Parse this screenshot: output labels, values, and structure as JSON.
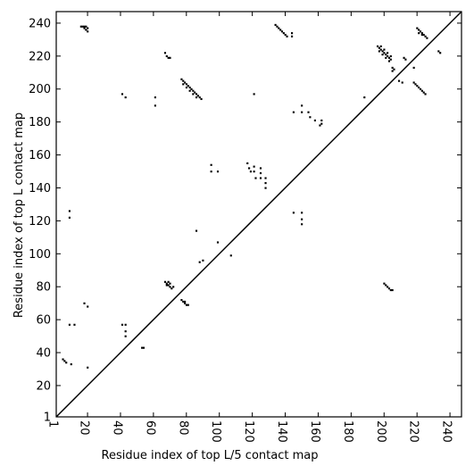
{
  "chart_data": {
    "type": "scatter",
    "title": "",
    "xlabel": "Residue index of top L/5 contact map",
    "ylabel": "Residue index of top L contact map",
    "xlim": [
      1,
      247
    ],
    "ylim": [
      1,
      247
    ],
    "xticks": [
      1,
      20,
      40,
      60,
      80,
      100,
      120,
      140,
      160,
      180,
      200,
      220,
      240
    ],
    "yticks": [
      1,
      20,
      40,
      60,
      80,
      100,
      120,
      140,
      160,
      180,
      200,
      220,
      240
    ],
    "xtick_labels": [
      "1",
      "20",
      "40",
      "60",
      "80",
      "100",
      "120",
      "140",
      "160",
      "180",
      "200",
      "220",
      "240"
    ],
    "ytick_labels": [
      "1",
      "20",
      "40",
      "60",
      "80",
      "100",
      "120",
      "140",
      "160",
      "180",
      "200",
      "220",
      "240"
    ],
    "grid": false,
    "diagonal_line": true,
    "marker_color": "#000000",
    "series": [
      {
        "points": [
          [
            16,
            238
          ],
          [
            17,
            238
          ],
          [
            18,
            237
          ],
          [
            19,
            236
          ],
          [
            20,
            235
          ],
          [
            19,
            238
          ],
          [
            20,
            237
          ],
          [
            18,
            238
          ],
          [
            5,
            36
          ],
          [
            6,
            35
          ],
          [
            7,
            34
          ],
          [
            10,
            33
          ],
          [
            9,
            126
          ],
          [
            9,
            122
          ],
          [
            9,
            57
          ],
          [
            12,
            57
          ],
          [
            18,
            70
          ],
          [
            20,
            68
          ],
          [
            20,
            31
          ],
          [
            41,
            57
          ],
          [
            43,
            57
          ],
          [
            43,
            53
          ],
          [
            43,
            50
          ],
          [
            53,
            43
          ],
          [
            54,
            43
          ],
          [
            41,
            197
          ],
          [
            43,
            195
          ],
          [
            61,
            195
          ],
          [
            61,
            190
          ],
          [
            67,
            222
          ],
          [
            68,
            220
          ],
          [
            69,
            219
          ],
          [
            70,
            219
          ],
          [
            67,
            83
          ],
          [
            68,
            82
          ],
          [
            69,
            81
          ],
          [
            70,
            80
          ],
          [
            71,
            79
          ],
          [
            68,
            81
          ],
          [
            70,
            82
          ],
          [
            72,
            80
          ],
          [
            69,
            83
          ],
          [
            77,
            72
          ],
          [
            78,
            71
          ],
          [
            79,
            70
          ],
          [
            80,
            69
          ],
          [
            81,
            69
          ],
          [
            79,
            71
          ],
          [
            77,
            206
          ],
          [
            78,
            205
          ],
          [
            79,
            204
          ],
          [
            80,
            203
          ],
          [
            81,
            202
          ],
          [
            82,
            201
          ],
          [
            83,
            200
          ],
          [
            84,
            199
          ],
          [
            85,
            198
          ],
          [
            86,
            197
          ],
          [
            87,
            196
          ],
          [
            88,
            195
          ],
          [
            89,
            194
          ],
          [
            78,
            203
          ],
          [
            80,
            201
          ],
          [
            82,
            199
          ],
          [
            84,
            197
          ],
          [
            86,
            195
          ],
          [
            86,
            114
          ],
          [
            88,
            95
          ],
          [
            90,
            96
          ],
          [
            95,
            150
          ],
          [
            95,
            154
          ],
          [
            99,
            150
          ],
          [
            99,
            107
          ],
          [
            107,
            99
          ],
          [
            121,
            197
          ],
          [
            117,
            155
          ],
          [
            118,
            152
          ],
          [
            119,
            150
          ],
          [
            121,
            153
          ],
          [
            121,
            150
          ],
          [
            122,
            146
          ],
          [
            125,
            152
          ],
          [
            125,
            149
          ],
          [
            125,
            146
          ],
          [
            128,
            146
          ],
          [
            128,
            143
          ],
          [
            128,
            140
          ],
          [
            134,
            239
          ],
          [
            135,
            238
          ],
          [
            136,
            237
          ],
          [
            137,
            236
          ],
          [
            138,
            235
          ],
          [
            139,
            234
          ],
          [
            140,
            233
          ],
          [
            141,
            232
          ],
          [
            144,
            234
          ],
          [
            144,
            232
          ],
          [
            145,
            186
          ],
          [
            145,
            125
          ],
          [
            150,
            190
          ],
          [
            150,
            186
          ],
          [
            150,
            125
          ],
          [
            150,
            121
          ],
          [
            150,
            118
          ],
          [
            154,
            186
          ],
          [
            155,
            183
          ],
          [
            158,
            181
          ],
          [
            162,
            181
          ],
          [
            162,
            179
          ],
          [
            161,
            178
          ],
          [
            188,
            195
          ],
          [
            196,
            226
          ],
          [
            197,
            225
          ],
          [
            198,
            224
          ],
          [
            199,
            223
          ],
          [
            200,
            222
          ],
          [
            201,
            221
          ],
          [
            202,
            220
          ],
          [
            203,
            219
          ],
          [
            204,
            218
          ],
          [
            205,
            213
          ],
          [
            206,
            212
          ],
          [
            197,
            223
          ],
          [
            199,
            221
          ],
          [
            201,
            219
          ],
          [
            203,
            217
          ],
          [
            205,
            211
          ],
          [
            198,
            226
          ],
          [
            200,
            224
          ],
          [
            202,
            222
          ],
          [
            204,
            220
          ],
          [
            200,
            82
          ],
          [
            201,
            81
          ],
          [
            202,
            80
          ],
          [
            203,
            79
          ],
          [
            204,
            78
          ],
          [
            205,
            78
          ],
          [
            209,
            205
          ],
          [
            211,
            204
          ],
          [
            212,
            219
          ],
          [
            213,
            218
          ],
          [
            218,
            204
          ],
          [
            219,
            203
          ],
          [
            220,
            202
          ],
          [
            221,
            201
          ],
          [
            222,
            200
          ],
          [
            223,
            199
          ],
          [
            224,
            198
          ],
          [
            225,
            197
          ],
          [
            220,
            237
          ],
          [
            221,
            236
          ],
          [
            222,
            235
          ],
          [
            223,
            234
          ],
          [
            224,
            233
          ],
          [
            225,
            232
          ],
          [
            226,
            231
          ],
          [
            221,
            234
          ],
          [
            223,
            233
          ],
          [
            218,
            213
          ],
          [
            233,
            223
          ],
          [
            234,
            222
          ]
        ]
      }
    ]
  }
}
